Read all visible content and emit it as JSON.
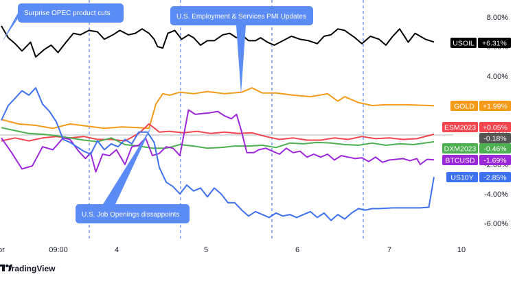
{
  "branding": {
    "logo_text": "TradingView"
  },
  "chart_data": {
    "type": "line",
    "x_ticks": [
      "or",
      "09:00",
      "4",
      "5",
      "6",
      "7",
      "10"
    ],
    "y_ticks": [
      "8.00%",
      "6.00%",
      "4.00%",
      "2.00%",
      "0.00%",
      "-2.00%",
      "-4.00%",
      "-6.00%"
    ],
    "ylim": [
      -7.2,
      9.5
    ],
    "grid": false,
    "baseline_value": 0,
    "event_markers_x": [
      3.65,
      4.72,
      5.78,
      6.82
    ],
    "series": [
      {
        "name": "USOIL",
        "value_label": "+6.31%",
        "color": "#000000",
        "values": [
          [
            0,
            7.4
          ],
          [
            0.2,
            6.6
          ],
          [
            0.4,
            6.2
          ],
          [
            0.6,
            5.7
          ],
          [
            0.85,
            6.3
          ],
          [
            1.0,
            5.3
          ],
          [
            1.25,
            5.8
          ],
          [
            1.45,
            6.1
          ],
          [
            1.65,
            5.6
          ],
          [
            1.85,
            6.2
          ],
          [
            2.1,
            6.9
          ],
          [
            2.3,
            6.8
          ],
          [
            2.55,
            7.1
          ],
          [
            2.8,
            7.0
          ],
          [
            3.0,
            6.5
          ],
          [
            3.25,
            6.8
          ],
          [
            3.45,
            7.1
          ],
          [
            3.7,
            6.8
          ],
          [
            3.9,
            6.9
          ],
          [
            4.1,
            7.2
          ],
          [
            4.3,
            6.9
          ],
          [
            4.45,
            6.5
          ],
          [
            4.55,
            6.0
          ],
          [
            4.7,
            5.9
          ],
          [
            4.85,
            6.9
          ],
          [
            5.05,
            7.1
          ],
          [
            5.25,
            6.5
          ],
          [
            5.45,
            6.8
          ],
          [
            5.6,
            6.6
          ],
          [
            5.8,
            6.1
          ],
          [
            6.0,
            6.4
          ],
          [
            6.2,
            6.4
          ],
          [
            6.45,
            6.8
          ],
          [
            6.65,
            6.9
          ],
          [
            6.85,
            6.6
          ],
          [
            7.0,
            6.8
          ],
          [
            7.2,
            6.4
          ],
          [
            7.4,
            6.4
          ],
          [
            7.55,
            6.6
          ],
          [
            7.75,
            6.3
          ],
          [
            7.95,
            6.1
          ],
          [
            8.2,
            6.4
          ],
          [
            8.45,
            6.7
          ],
          [
            8.7,
            6.5
          ],
          [
            8.95,
            6.4
          ],
          [
            9.2,
            6.2
          ],
          [
            9.4,
            6.7
          ],
          [
            9.6,
            6.8
          ],
          [
            9.8,
            7.2
          ],
          [
            10.0,
            7.1
          ],
          [
            10.3,
            6.6
          ],
          [
            10.5,
            6.2
          ],
          [
            10.75,
            6.7
          ],
          [
            11.0,
            6.5
          ],
          [
            11.2,
            6.1
          ],
          [
            11.4,
            6.7
          ],
          [
            11.6,
            7.2
          ],
          [
            11.85,
            6.3
          ],
          [
            12.05,
            6.9
          ],
          [
            12.35,
            6.5
          ],
          [
            12.6,
            6.31
          ]
        ]
      },
      {
        "name": "GOLD",
        "value_label": "+1.99%",
        "color": "#f59b19",
        "values": [
          [
            0,
            1.05
          ],
          [
            0.5,
            0.75
          ],
          [
            1.0,
            0.65
          ],
          [
            1.5,
            0.45
          ],
          [
            2.0,
            0.75
          ],
          [
            2.5,
            0.6
          ],
          [
            3.0,
            0.45
          ],
          [
            3.5,
            0.55
          ],
          [
            4.0,
            0.5
          ],
          [
            4.3,
            0.45
          ],
          [
            4.5,
            2.1
          ],
          [
            4.7,
            2.8
          ],
          [
            4.9,
            2.7
          ],
          [
            5.2,
            2.9
          ],
          [
            5.6,
            2.8
          ],
          [
            6.0,
            2.95
          ],
          [
            6.5,
            2.8
          ],
          [
            7.0,
            2.9
          ],
          [
            7.3,
            3.2
          ],
          [
            7.6,
            2.85
          ],
          [
            8.0,
            2.85
          ],
          [
            8.5,
            2.7
          ],
          [
            9.0,
            2.6
          ],
          [
            9.5,
            2.8
          ],
          [
            9.8,
            2.3
          ],
          [
            10.0,
            2.6
          ],
          [
            10.4,
            2.2
          ],
          [
            10.8,
            2.0
          ],
          [
            11.2,
            2.05
          ],
          [
            11.8,
            2.05
          ],
          [
            12.6,
            1.99
          ]
        ]
      },
      {
        "name": "ESM2023",
        "value_label": "+0.05%",
        "color": "#f2454d",
        "values": [
          [
            0,
            -0.4
          ],
          [
            0.4,
            -0.2
          ],
          [
            0.8,
            -0.4
          ],
          [
            1.2,
            -0.2
          ],
          [
            1.6,
            -0.1
          ],
          [
            2.0,
            -0.2
          ],
          [
            2.4,
            -0.1
          ],
          [
            2.8,
            -0.3
          ],
          [
            3.2,
            -0.3
          ],
          [
            3.6,
            -0.4
          ],
          [
            4.0,
            0.1
          ],
          [
            4.3,
            0.75
          ],
          [
            4.6,
            0.2
          ],
          [
            4.9,
            0.25
          ],
          [
            5.3,
            0.15
          ],
          [
            5.7,
            0.25
          ],
          [
            6.1,
            0.1
          ],
          [
            6.5,
            0.2
          ],
          [
            6.9,
            0.1
          ],
          [
            7.3,
            0.15
          ],
          [
            7.7,
            -0.1
          ],
          [
            8.1,
            -0.3
          ],
          [
            8.5,
            -0.2
          ],
          [
            8.9,
            -0.35
          ],
          [
            9.3,
            -0.35
          ],
          [
            9.7,
            -0.2
          ],
          [
            10.1,
            -0.3
          ],
          [
            10.5,
            -0.1
          ],
          [
            10.9,
            -0.25
          ],
          [
            11.3,
            -0.2
          ],
          [
            11.7,
            -0.3
          ],
          [
            12.1,
            -0.25
          ],
          [
            12.6,
            0.05
          ]
        ]
      },
      {
        "name": "DXM2023",
        "value_label": "-0.46%",
        "color": "#4caf50",
        "values": [
          [
            0,
            0.5
          ],
          [
            0.4,
            0.3
          ],
          [
            0.8,
            0.1
          ],
          [
            1.2,
            0.05
          ],
          [
            1.6,
            -0.05
          ],
          [
            2.0,
            -0.2
          ],
          [
            2.4,
            -0.35
          ],
          [
            2.8,
            -0.45
          ],
          [
            3.2,
            -0.2
          ],
          [
            3.6,
            -0.65
          ],
          [
            4.0,
            -0.75
          ],
          [
            4.4,
            -0.9
          ],
          [
            4.8,
            -0.9
          ],
          [
            5.2,
            -0.65
          ],
          [
            5.6,
            -0.75
          ],
          [
            6.0,
            -0.9
          ],
          [
            6.4,
            -0.85
          ],
          [
            6.8,
            -0.75
          ],
          [
            7.2,
            -0.75
          ],
          [
            7.6,
            -0.7
          ],
          [
            8.0,
            -0.85
          ],
          [
            8.4,
            -0.55
          ],
          [
            8.8,
            -0.6
          ],
          [
            9.2,
            -0.5
          ],
          [
            9.6,
            -0.55
          ],
          [
            10.0,
            -0.65
          ],
          [
            10.4,
            -0.7
          ],
          [
            10.8,
            -0.55
          ],
          [
            11.2,
            -0.7
          ],
          [
            11.6,
            -0.6
          ],
          [
            12.0,
            -0.65
          ],
          [
            12.6,
            -0.46
          ]
        ]
      },
      {
        "name": "BTCUSD",
        "value_label": "-1.69%",
        "color": "#9c27d9",
        "values": [
          [
            0,
            -0.2
          ],
          [
            0.3,
            -1.2
          ],
          [
            0.6,
            -2.3
          ],
          [
            0.9,
            -2.1
          ],
          [
            1.2,
            -0.8
          ],
          [
            1.5,
            -1.0
          ],
          [
            1.8,
            -0.2
          ],
          [
            2.0,
            -0.3
          ],
          [
            2.25,
            -1.1
          ],
          [
            2.45,
            -1.6
          ],
          [
            2.6,
            -1.2
          ],
          [
            2.75,
            -2.5
          ],
          [
            2.95,
            -1.3
          ],
          [
            3.15,
            -1.4
          ],
          [
            3.35,
            -1.0
          ],
          [
            3.6,
            -2.0
          ],
          [
            3.8,
            -0.8
          ],
          [
            4.0,
            -0.7
          ],
          [
            4.2,
            -0.2
          ],
          [
            4.4,
            -1.4
          ],
          [
            4.6,
            -1.25
          ],
          [
            4.8,
            -0.8
          ],
          [
            5.0,
            -0.9
          ],
          [
            5.2,
            -1.4
          ],
          [
            5.45,
            1.7
          ],
          [
            5.65,
            1.4
          ],
          [
            5.85,
            1.45
          ],
          [
            6.05,
            1.5
          ],
          [
            6.3,
            1.6
          ],
          [
            6.5,
            1.3
          ],
          [
            6.7,
            1.1
          ],
          [
            6.85,
            1.4
          ],
          [
            7.0,
            0.2
          ],
          [
            7.15,
            -1.2
          ],
          [
            7.35,
            -1.2
          ],
          [
            7.5,
            -1.0
          ],
          [
            7.7,
            -0.9
          ],
          [
            7.9,
            -1.1
          ],
          [
            8.1,
            -1.3
          ],
          [
            8.3,
            -0.9
          ],
          [
            8.5,
            -1.2
          ],
          [
            8.7,
            -1.1
          ],
          [
            8.9,
            -1.5
          ],
          [
            9.1,
            -1.3
          ],
          [
            9.3,
            -1.5
          ],
          [
            9.5,
            -1.3
          ],
          [
            9.7,
            -1.7
          ],
          [
            9.9,
            -1.4
          ],
          [
            10.1,
            -1.5
          ],
          [
            10.3,
            -1.6
          ],
          [
            10.5,
            -1.55
          ],
          [
            10.7,
            -1.8
          ],
          [
            10.9,
            -1.5
          ],
          [
            11.1,
            -1.85
          ],
          [
            11.3,
            -1.7
          ],
          [
            11.5,
            -1.65
          ],
          [
            11.7,
            -1.6
          ],
          [
            11.9,
            -1.75
          ],
          [
            12.1,
            -1.6
          ],
          [
            12.2,
            -2.0
          ],
          [
            12.4,
            -1.65
          ],
          [
            12.6,
            -1.69
          ]
        ]
      },
      {
        "name": "US10Y",
        "value_label": "-2.85%",
        "color": "#3d71f0",
        "values": [
          [
            0,
            1.0
          ],
          [
            0.2,
            2.0
          ],
          [
            0.4,
            2.5
          ],
          [
            0.6,
            3.0
          ],
          [
            0.8,
            2.7
          ],
          [
            1.0,
            3.2
          ],
          [
            1.2,
            2.1
          ],
          [
            1.4,
            1.6
          ],
          [
            1.6,
            0.9
          ],
          [
            1.8,
            -0.3
          ],
          [
            2.0,
            -0.5
          ],
          [
            2.2,
            -0.8
          ],
          [
            2.4,
            -1.1
          ],
          [
            2.6,
            -1.3
          ],
          [
            2.8,
            -0.4
          ],
          [
            3.0,
            -1.0
          ],
          [
            3.2,
            -0.6
          ],
          [
            3.4,
            -0.8
          ],
          [
            3.6,
            -0.3
          ],
          [
            3.8,
            -0.6
          ],
          [
            4.0,
            0.2
          ],
          [
            4.25,
            0.2
          ],
          [
            4.45,
            -0.5
          ],
          [
            4.6,
            -2.2
          ],
          [
            4.8,
            -3.2
          ],
          [
            5.0,
            -3.5
          ],
          [
            5.2,
            -4.0
          ],
          [
            5.4,
            -3.4
          ],
          [
            5.6,
            -3.8
          ],
          [
            5.8,
            -3.6
          ],
          [
            6.0,
            -4.2
          ],
          [
            6.2,
            -3.6
          ],
          [
            6.4,
            -4.0
          ],
          [
            6.6,
            -4.6
          ],
          [
            6.8,
            -4.6
          ],
          [
            7.0,
            -5.1
          ],
          [
            7.2,
            -5.5
          ],
          [
            7.4,
            -5.2
          ],
          [
            7.6,
            -5.4
          ],
          [
            7.8,
            -5.6
          ],
          [
            8.0,
            -5.3
          ],
          [
            8.2,
            -5.5
          ],
          [
            8.4,
            -5.4
          ],
          [
            8.6,
            -5.6
          ],
          [
            8.8,
            -5.4
          ],
          [
            9.0,
            -5.2
          ],
          [
            9.2,
            -5.6
          ],
          [
            9.4,
            -5.3
          ],
          [
            9.6,
            -5.8
          ],
          [
            9.8,
            -5.4
          ],
          [
            10.0,
            -5.7
          ],
          [
            10.2,
            -5.3
          ],
          [
            10.4,
            -5.0
          ],
          [
            10.6,
            -5.1
          ],
          [
            10.8,
            -5.0
          ],
          [
            11.0,
            -5.0
          ],
          [
            11.4,
            -4.95
          ],
          [
            11.8,
            -4.95
          ],
          [
            12.2,
            -4.95
          ],
          [
            12.45,
            -4.9
          ],
          [
            12.6,
            -2.85
          ]
        ]
      }
    ],
    "extra_value_label": {
      "text": "-0.18%",
      "value": -0.18,
      "color": "#555555"
    },
    "annotations": [
      {
        "text": "Surprise OPEC product cuts"
      },
      {
        "text": "U.S. Employment & Services PMI Updates"
      },
      {
        "text": "U.S. Job Openings dissappoints"
      }
    ]
  }
}
